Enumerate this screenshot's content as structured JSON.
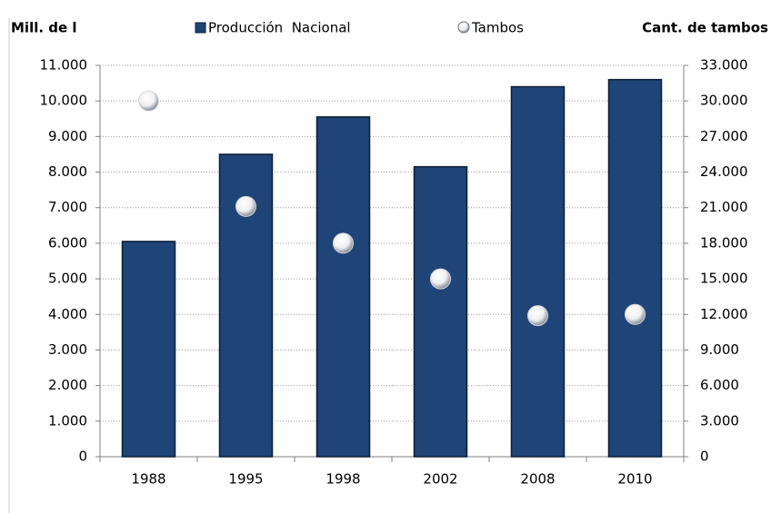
{
  "chart_data": {
    "type": "bar",
    "y_label": "Mill. de l",
    "y2_label": "Cant. de tambos",
    "categories": [
      "1988",
      "1995",
      "1998",
      "2002",
      "2008",
      "2010"
    ],
    "series": [
      {
        "name": "Producción  Nacional",
        "type": "bar",
        "color": "#1f4478",
        "values": [
          6050,
          8500,
          9550,
          8150,
          10400,
          10600
        ]
      },
      {
        "name": "Tambos",
        "type": "scatter",
        "axis": "y2",
        "color": "#d8d8d8",
        "values": [
          30000,
          21100,
          18000,
          15000,
          11900,
          12000
        ]
      }
    ],
    "ylim": [
      0,
      11000
    ],
    "yticks": [
      0,
      {
        "value": 1000,
        "label": "1.000"
      },
      {
        "value": 2000,
        "label": "2.000"
      },
      {
        "value": 3000,
        "label": "3.000"
      },
      {
        "value": 4000,
        "label": "4.000"
      },
      {
        "value": 5000,
        "label": "5.000"
      },
      {
        "value": 6000,
        "label": "6.000"
      },
      {
        "value": 7000,
        "label": "7.000"
      },
      {
        "value": 8000,
        "label": "8.000"
      },
      {
        "value": 9000,
        "label": "9.000"
      },
      {
        "value": 10000,
        "label": "10.000"
      },
      {
        "value": 11000,
        "label": "11.000"
      }
    ],
    "y2lim": [
      0,
      33000
    ],
    "y2ticks": [
      0,
      {
        "value": 3000,
        "label": "3.000"
      },
      {
        "value": 6000,
        "label": "6.000"
      },
      {
        "value": 9000,
        "label": "9.000"
      },
      {
        "value": 12000,
        "label": "12.000"
      },
      {
        "value": 15000,
        "label": "15.000"
      },
      {
        "value": 18000,
        "label": "18.000"
      },
      {
        "value": 21000,
        "label": "21.000"
      },
      {
        "value": 24000,
        "label": "24.000"
      },
      {
        "value": 27000,
        "label": "27.000"
      },
      {
        "value": 30000,
        "label": "30.000"
      },
      {
        "value": 33000,
        "label": "33.000"
      }
    ],
    "grid": true
  }
}
